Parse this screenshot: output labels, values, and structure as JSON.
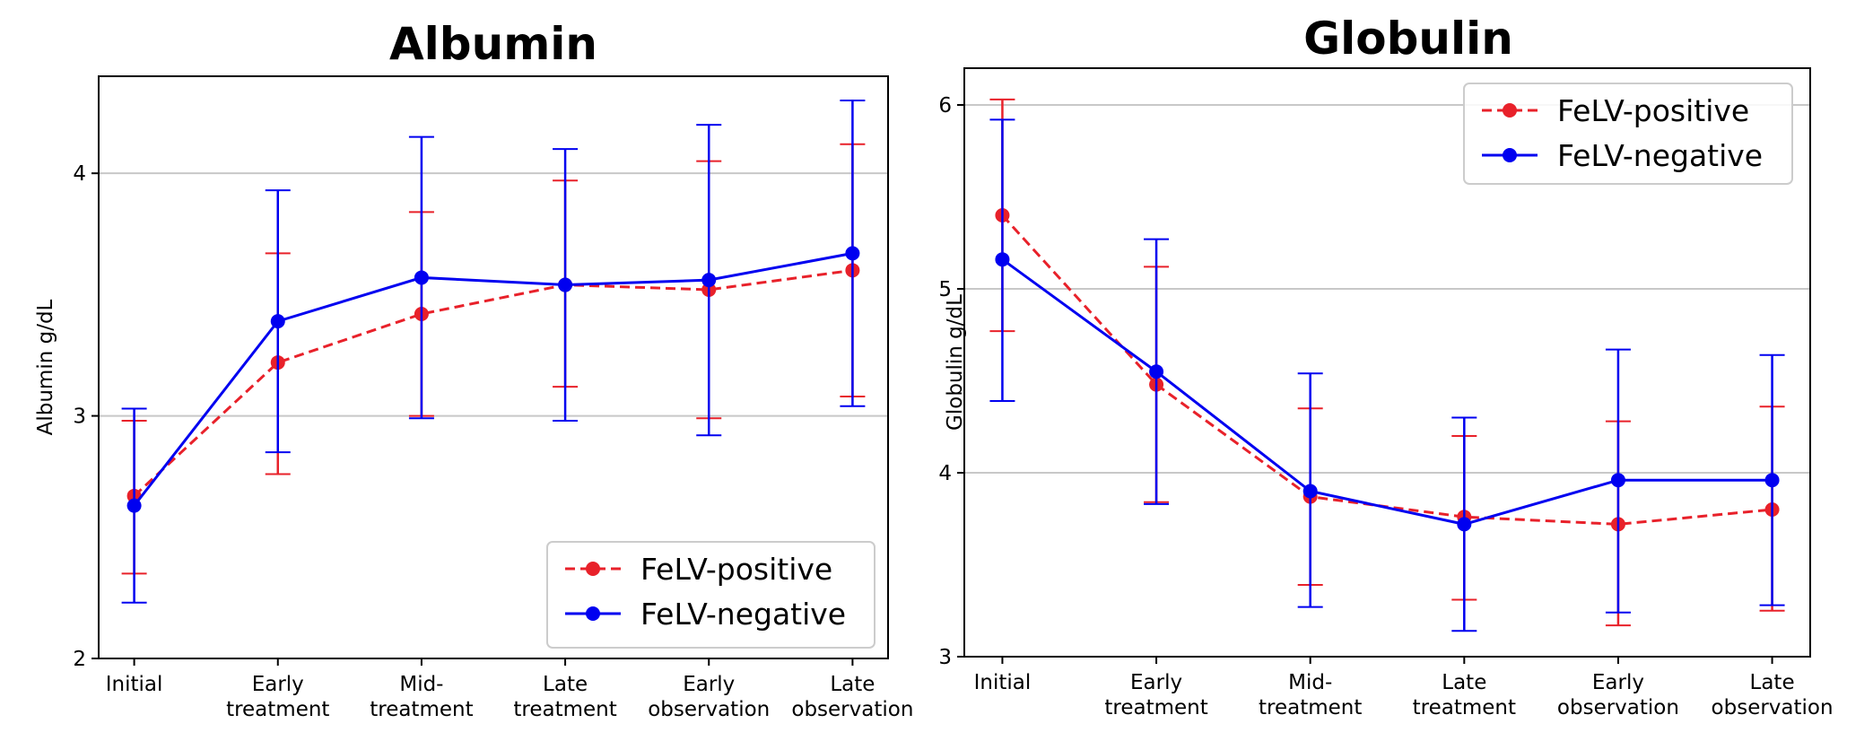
{
  "chart_data": [
    {
      "type": "line",
      "title": "Albumin",
      "xlabel": "",
      "ylabel": "Albumin g/dL",
      "categories": [
        [
          "Initial"
        ],
        [
          "Early",
          "treatment"
        ],
        [
          "Mid-",
          "treatment"
        ],
        [
          "Late",
          "treatment"
        ],
        [
          "Early",
          "observation"
        ],
        [
          "Late",
          "observation"
        ]
      ],
      "ylim": [
        2,
        4.4
      ],
      "yticks": [
        2,
        3,
        4
      ],
      "grid": "horizontal",
      "legend_position": "lower-right",
      "series": [
        {
          "name": "FeLV-positive",
          "color": "#e8212a",
          "linestyle": "dashed",
          "values": [
            2.67,
            3.22,
            3.42,
            3.54,
            3.52,
            3.6
          ],
          "err_low": [
            2.35,
            2.76,
            3.0,
            3.12,
            2.99,
            3.08
          ],
          "err_high": [
            2.98,
            3.67,
            3.84,
            3.97,
            4.05,
            4.12
          ]
        },
        {
          "name": "FeLV-negative",
          "color": "#0000f0",
          "linestyle": "solid",
          "values": [
            2.63,
            3.39,
            3.57,
            3.54,
            3.56,
            3.67
          ],
          "err_low": [
            2.23,
            2.85,
            2.99,
            2.98,
            2.92,
            3.04
          ],
          "err_high": [
            3.03,
            3.93,
            4.15,
            4.1,
            4.2,
            4.3
          ]
        }
      ]
    },
    {
      "type": "line",
      "title": "Globulin",
      "xlabel": "",
      "ylabel": "Globulin g/dL",
      "categories": [
        [
          "Initial"
        ],
        [
          "Early",
          "treatment"
        ],
        [
          "Mid-",
          "treatment"
        ],
        [
          "Late",
          "treatment"
        ],
        [
          "Early",
          "observation"
        ],
        [
          "Late",
          "observation"
        ]
      ],
      "ylim": [
        3,
        6.2
      ],
      "yticks": [
        3,
        4,
        5,
        6
      ],
      "grid": "horizontal",
      "legend_position": "upper-right",
      "series": [
        {
          "name": "FeLV-positive",
          "color": "#e8212a",
          "linestyle": "dashed",
          "values": [
            5.4,
            4.48,
            3.87,
            3.76,
            3.72,
            3.8
          ],
          "err_low": [
            4.77,
            3.84,
            3.39,
            3.31,
            3.17,
            3.25
          ],
          "err_high": [
            6.03,
            5.12,
            4.35,
            4.2,
            4.28,
            4.36
          ]
        },
        {
          "name": "FeLV-negative",
          "color": "#0000f0",
          "linestyle": "solid",
          "values": [
            5.16,
            4.55,
            3.9,
            3.72,
            3.96,
            3.96
          ],
          "err_low": [
            4.39,
            3.83,
            3.27,
            3.14,
            3.24,
            3.28
          ],
          "err_high": [
            5.92,
            5.27,
            4.54,
            4.3,
            4.67,
            4.64
          ]
        }
      ]
    }
  ]
}
